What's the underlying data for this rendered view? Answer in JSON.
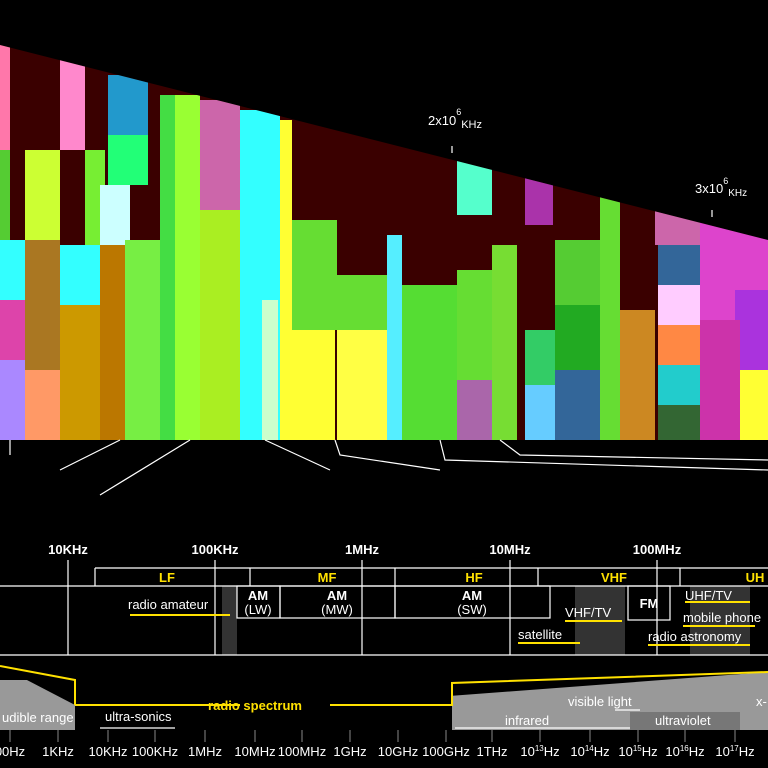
{
  "top_labels": [
    {
      "base": "2x10",
      "exp": "6",
      "unit": "KHz"
    },
    {
      "base": "3x10",
      "exp": "6",
      "unit": "KHz"
    }
  ],
  "scale": [
    "10KHz",
    "100KHz",
    "1MHz",
    "10MHz",
    "100MHz"
  ],
  "bands": [
    "LF",
    "MF",
    "HF",
    "VHF",
    "UH"
  ],
  "am": [
    {
      "name": "AM",
      "sub": "(LW)"
    },
    {
      "name": "AM",
      "sub": "(MW)"
    },
    {
      "name": "AM",
      "sub": "(SW)"
    }
  ],
  "fm": "FM",
  "services": [
    "radio amateur",
    "VHF/TV",
    "UHF/TV",
    "mobile phone",
    "satellite",
    "radio astronomy"
  ],
  "spectrum": {
    "title": "radio spectrum",
    "labels": [
      "udible range",
      "ultra-sonics",
      "visible light",
      "infrared",
      "ultraviolet",
      "x-"
    ]
  },
  "axis": [
    {
      "base": "00Hz"
    },
    {
      "base": "1KHz"
    },
    {
      "base": "10KHz"
    },
    {
      "base": "100KHz"
    },
    {
      "base": "1MHz"
    },
    {
      "base": "10MHz"
    },
    {
      "base": "100MHz"
    },
    {
      "base": "1GHz"
    },
    {
      "base": "10GHz"
    },
    {
      "base": "100GHz"
    },
    {
      "base": "1THz"
    },
    {
      "base": "10",
      "exp": "13",
      "unit": "Hz"
    },
    {
      "base": "10",
      "exp": "14",
      "unit": "Hz"
    },
    {
      "base": "10",
      "exp": "15",
      "unit": "Hz"
    },
    {
      "base": "10",
      "exp": "16",
      "unit": "Hz"
    },
    {
      "base": "10",
      "exp": "17",
      "unit": "Hz"
    }
  ]
}
